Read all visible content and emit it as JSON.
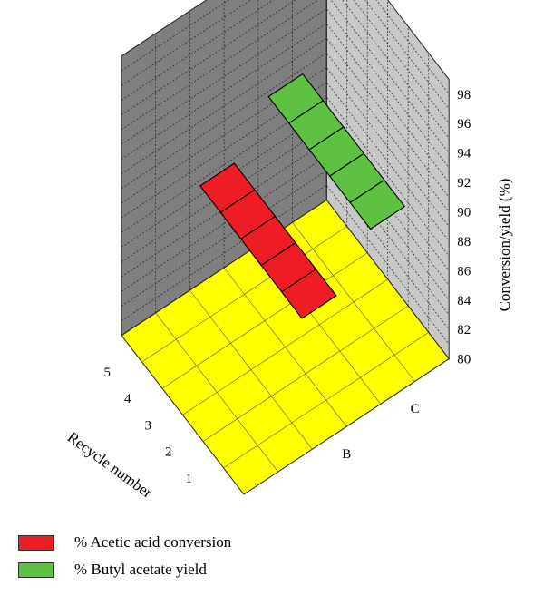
{
  "chart_data": {
    "type": "bar",
    "subtype": "3d-floating-planes",
    "title": "",
    "zlabel": "Conversion/yield (%)",
    "ylabel": "Recycle number",
    "zlim": [
      80,
      99
    ],
    "z_ticks": [
      "80",
      "82",
      "84",
      "86",
      "88",
      "90",
      "92",
      "94",
      "96",
      "98"
    ],
    "recycle_ticks": [
      "1",
      "2",
      "3",
      "4",
      "5"
    ],
    "series_axis_ticks": [
      "B",
      "C"
    ],
    "categories": [
      "1",
      "2",
      "3",
      "4",
      "5"
    ],
    "series": [
      {
        "name": "% Acetic acid conversion",
        "values": [
          88,
          88,
          88,
          88,
          88
        ]
      },
      {
        "name": "% Butyl acetate yield",
        "values": [
          91,
          91,
          91,
          91,
          91
        ]
      }
    ],
    "colors": {
      "series_1": "#ee1c24",
      "series_2": "#5ec141",
      "floor": "#ffff00",
      "left_wall": "#7f7f7f",
      "right_wall": "#c8c8c8"
    },
    "grid": true,
    "legend": "bottom-left"
  },
  "legend": {
    "items": [
      {
        "label": "% Acetic acid conversion",
        "color": "#ee1c24"
      },
      {
        "label": "% Butyl acetate yield",
        "color": "#5ec141"
      }
    ]
  }
}
